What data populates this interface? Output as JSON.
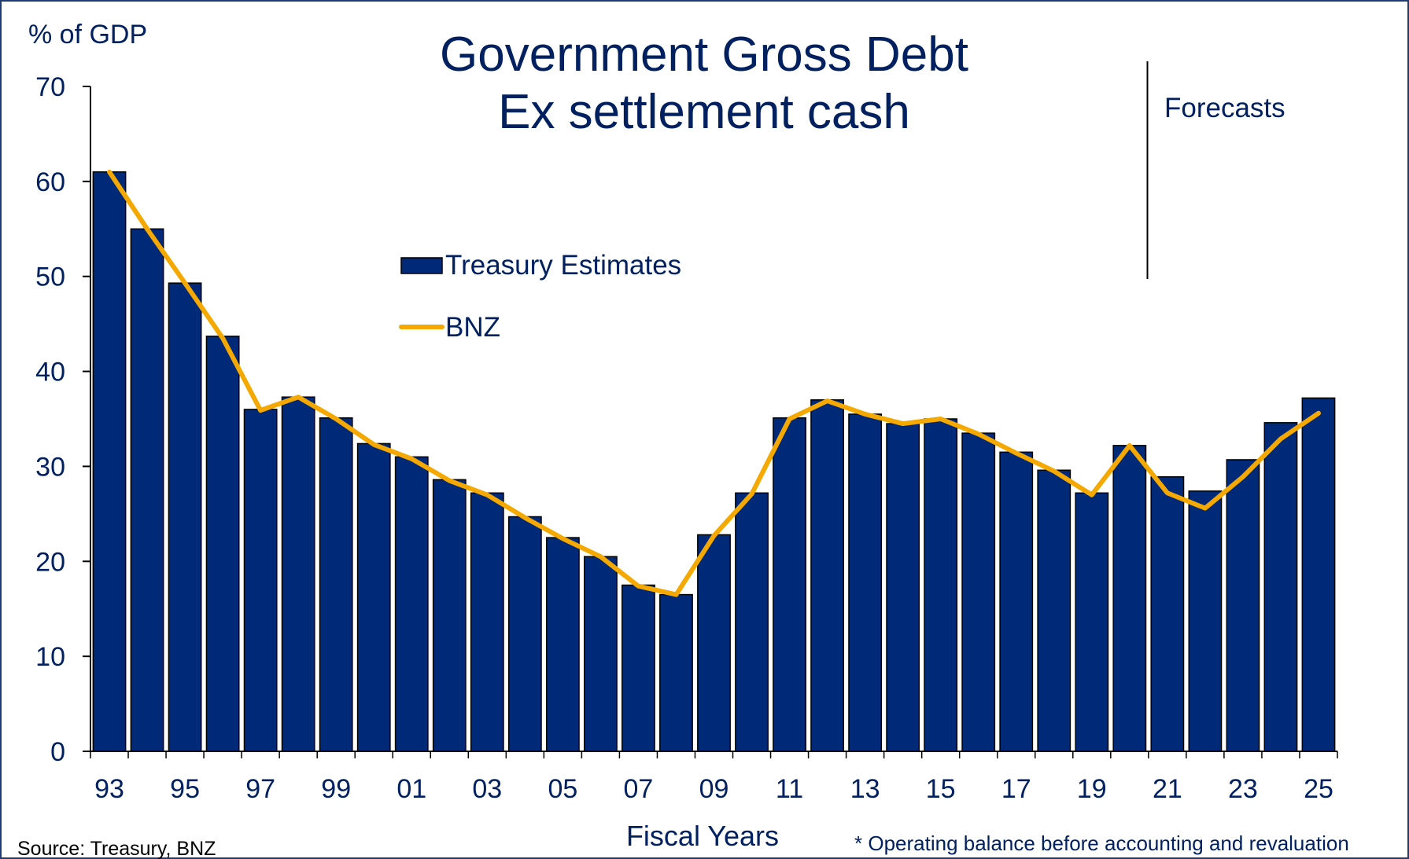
{
  "chart_data": {
    "type": "bar",
    "title": "Government Gross Debt",
    "subtitle": "Ex settlement cash",
    "ylabel": "% of GDP",
    "xlabel": "Fiscal Years",
    "ylim": [
      0,
      70
    ],
    "yticks": [
      0,
      10,
      20,
      30,
      40,
      50,
      60,
      70
    ],
    "categories": [
      "93",
      "94",
      "95",
      "96",
      "97",
      "98",
      "99",
      "00",
      "01",
      "02",
      "03",
      "04",
      "05",
      "06",
      "07",
      "08",
      "09",
      "10",
      "11",
      "12",
      "13",
      "14",
      "15",
      "16",
      "17",
      "18",
      "19",
      "20",
      "21",
      "22",
      "23",
      "24",
      "25"
    ],
    "xtick_labels": [
      "93",
      "95",
      "97",
      "99",
      "01",
      "03",
      "05",
      "07",
      "09",
      "11",
      "13",
      "15",
      "17",
      "19",
      "21",
      "23",
      "25"
    ],
    "series": [
      {
        "name": "Treasury Estimates",
        "kind": "bar",
        "color": "#002a78",
        "values": [
          61.0,
          55.0,
          49.3,
          43.7,
          36.0,
          37.3,
          35.1,
          32.4,
          31.0,
          28.6,
          27.2,
          24.7,
          22.5,
          20.5,
          17.5,
          16.5,
          22.8,
          27.2,
          35.1,
          37.0,
          35.5,
          34.5,
          35.0,
          33.5,
          31.5,
          29.6,
          27.2,
          32.2,
          28.9,
          27.4,
          30.7,
          34.6,
          37.2
        ]
      },
      {
        "name": "BNZ",
        "kind": "line",
        "color": "#f5a800",
        "values": [
          61.0,
          55.0,
          49.3,
          43.5,
          35.9,
          37.3,
          35.0,
          32.3,
          30.8,
          28.5,
          27.0,
          24.6,
          22.4,
          20.5,
          17.4,
          16.5,
          22.7,
          27.1,
          35.0,
          36.9,
          35.5,
          34.5,
          35.0,
          33.4,
          31.4,
          29.5,
          27.0,
          32.2,
          27.2,
          25.6,
          28.9,
          32.9,
          35.6
        ]
      }
    ],
    "forecast_label": "Forecasts",
    "source": "Source: Treasury, BNZ",
    "footnote": "* Operating balance before accounting and revaluation",
    "grid": false,
    "legend": "center"
  }
}
